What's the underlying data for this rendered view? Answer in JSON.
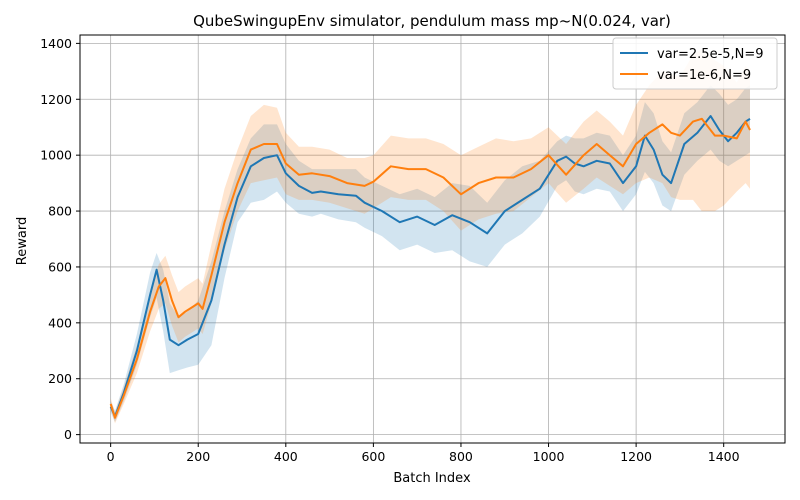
{
  "chart_data": {
    "type": "line",
    "title": "QubeSwingupEnv simulator, pendulum mass mp~N(0.024, var)",
    "xlabel": "Batch Index",
    "ylabel": "Reward",
    "xlim": [
      -70,
      1540
    ],
    "ylim": [
      -30,
      1430
    ],
    "x_ticks": [
      0,
      200,
      400,
      600,
      800,
      1000,
      1200,
      1400
    ],
    "y_ticks": [
      0,
      200,
      400,
      600,
      800,
      1000,
      1200,
      1400
    ],
    "grid": true,
    "legend_position": "top-right",
    "series": [
      {
        "name": "var=2.5e-5,N=9",
        "color": "#1f77b4",
        "band_opacity": 0.2,
        "x": [
          0,
          10,
          30,
          60,
          90,
          105,
          120,
          135,
          155,
          175,
          200,
          230,
          260,
          290,
          320,
          350,
          380,
          400,
          430,
          460,
          480,
          520,
          560,
          580,
          620,
          660,
          700,
          740,
          780,
          820,
          860,
          900,
          940,
          980,
          1020,
          1040,
          1060,
          1080,
          1110,
          1140,
          1170,
          1200,
          1220,
          1240,
          1260,
          1280,
          1310,
          1340,
          1370,
          1390,
          1410,
          1430,
          1450,
          1460
        ],
        "mean": [
          100,
          65,
          150,
          300,
          500,
          590,
          480,
          340,
          320,
          340,
          360,
          480,
          680,
          850,
          960,
          990,
          1000,
          935,
          890,
          865,
          870,
          860,
          855,
          830,
          800,
          760,
          780,
          750,
          785,
          760,
          720,
          800,
          840,
          880,
          980,
          995,
          970,
          960,
          980,
          970,
          900,
          960,
          1070,
          1020,
          930,
          900,
          1040,
          1080,
          1140,
          1090,
          1050,
          1080,
          1120,
          1130
        ],
        "lower": [
          80,
          45,
          120,
          250,
          420,
          490,
          370,
          220,
          230,
          240,
          250,
          320,
          560,
          760,
          830,
          840,
          870,
          830,
          790,
          780,
          790,
          770,
          760,
          740,
          710,
          660,
          680,
          650,
          660,
          620,
          600,
          680,
          720,
          780,
          890,
          910,
          870,
          860,
          880,
          870,
          800,
          860,
          940,
          900,
          820,
          800,
          930,
          980,
          1020,
          980,
          960,
          980,
          1000,
          1010
        ],
        "upper": [
          120,
          85,
          180,
          360,
          580,
          650,
          590,
          470,
          420,
          440,
          480,
          620,
          800,
          950,
          1060,
          1110,
          1110,
          1040,
          980,
          950,
          950,
          950,
          950,
          920,
          890,
          860,
          880,
          850,
          900,
          890,
          830,
          910,
          960,
          980,
          1050,
          1070,
          1060,
          1060,
          1080,
          1070,
          1000,
          1070,
          1190,
          1150,
          1050,
          1010,
          1150,
          1190,
          1250,
          1220,
          1180,
          1200,
          1240,
          1250
        ]
      },
      {
        "name": "var=1e-6,N=9",
        "color": "#ff7f0e",
        "band_opacity": 0.2,
        "x": [
          0,
          10,
          30,
          60,
          90,
          110,
          125,
          140,
          155,
          170,
          190,
          200,
          210,
          230,
          260,
          290,
          320,
          350,
          380,
          400,
          430,
          460,
          500,
          540,
          580,
          600,
          640,
          680,
          720,
          760,
          800,
          840,
          880,
          920,
          960,
          1000,
          1040,
          1080,
          1110,
          1140,
          1170,
          1200,
          1230,
          1260,
          1280,
          1300,
          1330,
          1350,
          1380,
          1400,
          1430,
          1450,
          1460
        ],
        "mean": [
          110,
          60,
          140,
          270,
          440,
          530,
          560,
          480,
          420,
          440,
          460,
          470,
          450,
          570,
          760,
          900,
          1020,
          1040,
          1040,
          970,
          930,
          935,
          925,
          900,
          890,
          905,
          960,
          950,
          950,
          920,
          860,
          900,
          920,
          920,
          950,
          1000,
          930,
          1000,
          1040,
          1000,
          960,
          1040,
          1080,
          1110,
          1080,
          1070,
          1120,
          1130,
          1070,
          1070,
          1060,
          1120,
          1090
        ],
        "lower": [
          90,
          40,
          110,
          220,
          370,
          450,
          470,
          390,
          330,
          350,
          370,
          380,
          360,
          470,
          660,
          800,
          900,
          910,
          920,
          860,
          840,
          840,
          830,
          810,
          790,
          810,
          850,
          840,
          840,
          800,
          730,
          770,
          790,
          800,
          850,
          900,
          830,
          880,
          920,
          890,
          860,
          900,
          920,
          900,
          850,
          840,
          840,
          800,
          800,
          820,
          870,
          900,
          880
        ],
        "upper": [
          130,
          80,
          170,
          320,
          510,
          610,
          640,
          570,
          510,
          530,
          550,
          560,
          540,
          680,
          880,
          1020,
          1140,
          1180,
          1170,
          1080,
          1030,
          1030,
          1020,
          990,
          990,
          1000,
          1070,
          1060,
          1060,
          1040,
          1000,
          1030,
          1060,
          1050,
          1060,
          1100,
          1040,
          1120,
          1160,
          1120,
          1070,
          1180,
          1250,
          1300,
          1290,
          1280,
          1360,
          1380,
          1340,
          1320,
          1260,
          1320,
          1300
        ]
      }
    ]
  }
}
